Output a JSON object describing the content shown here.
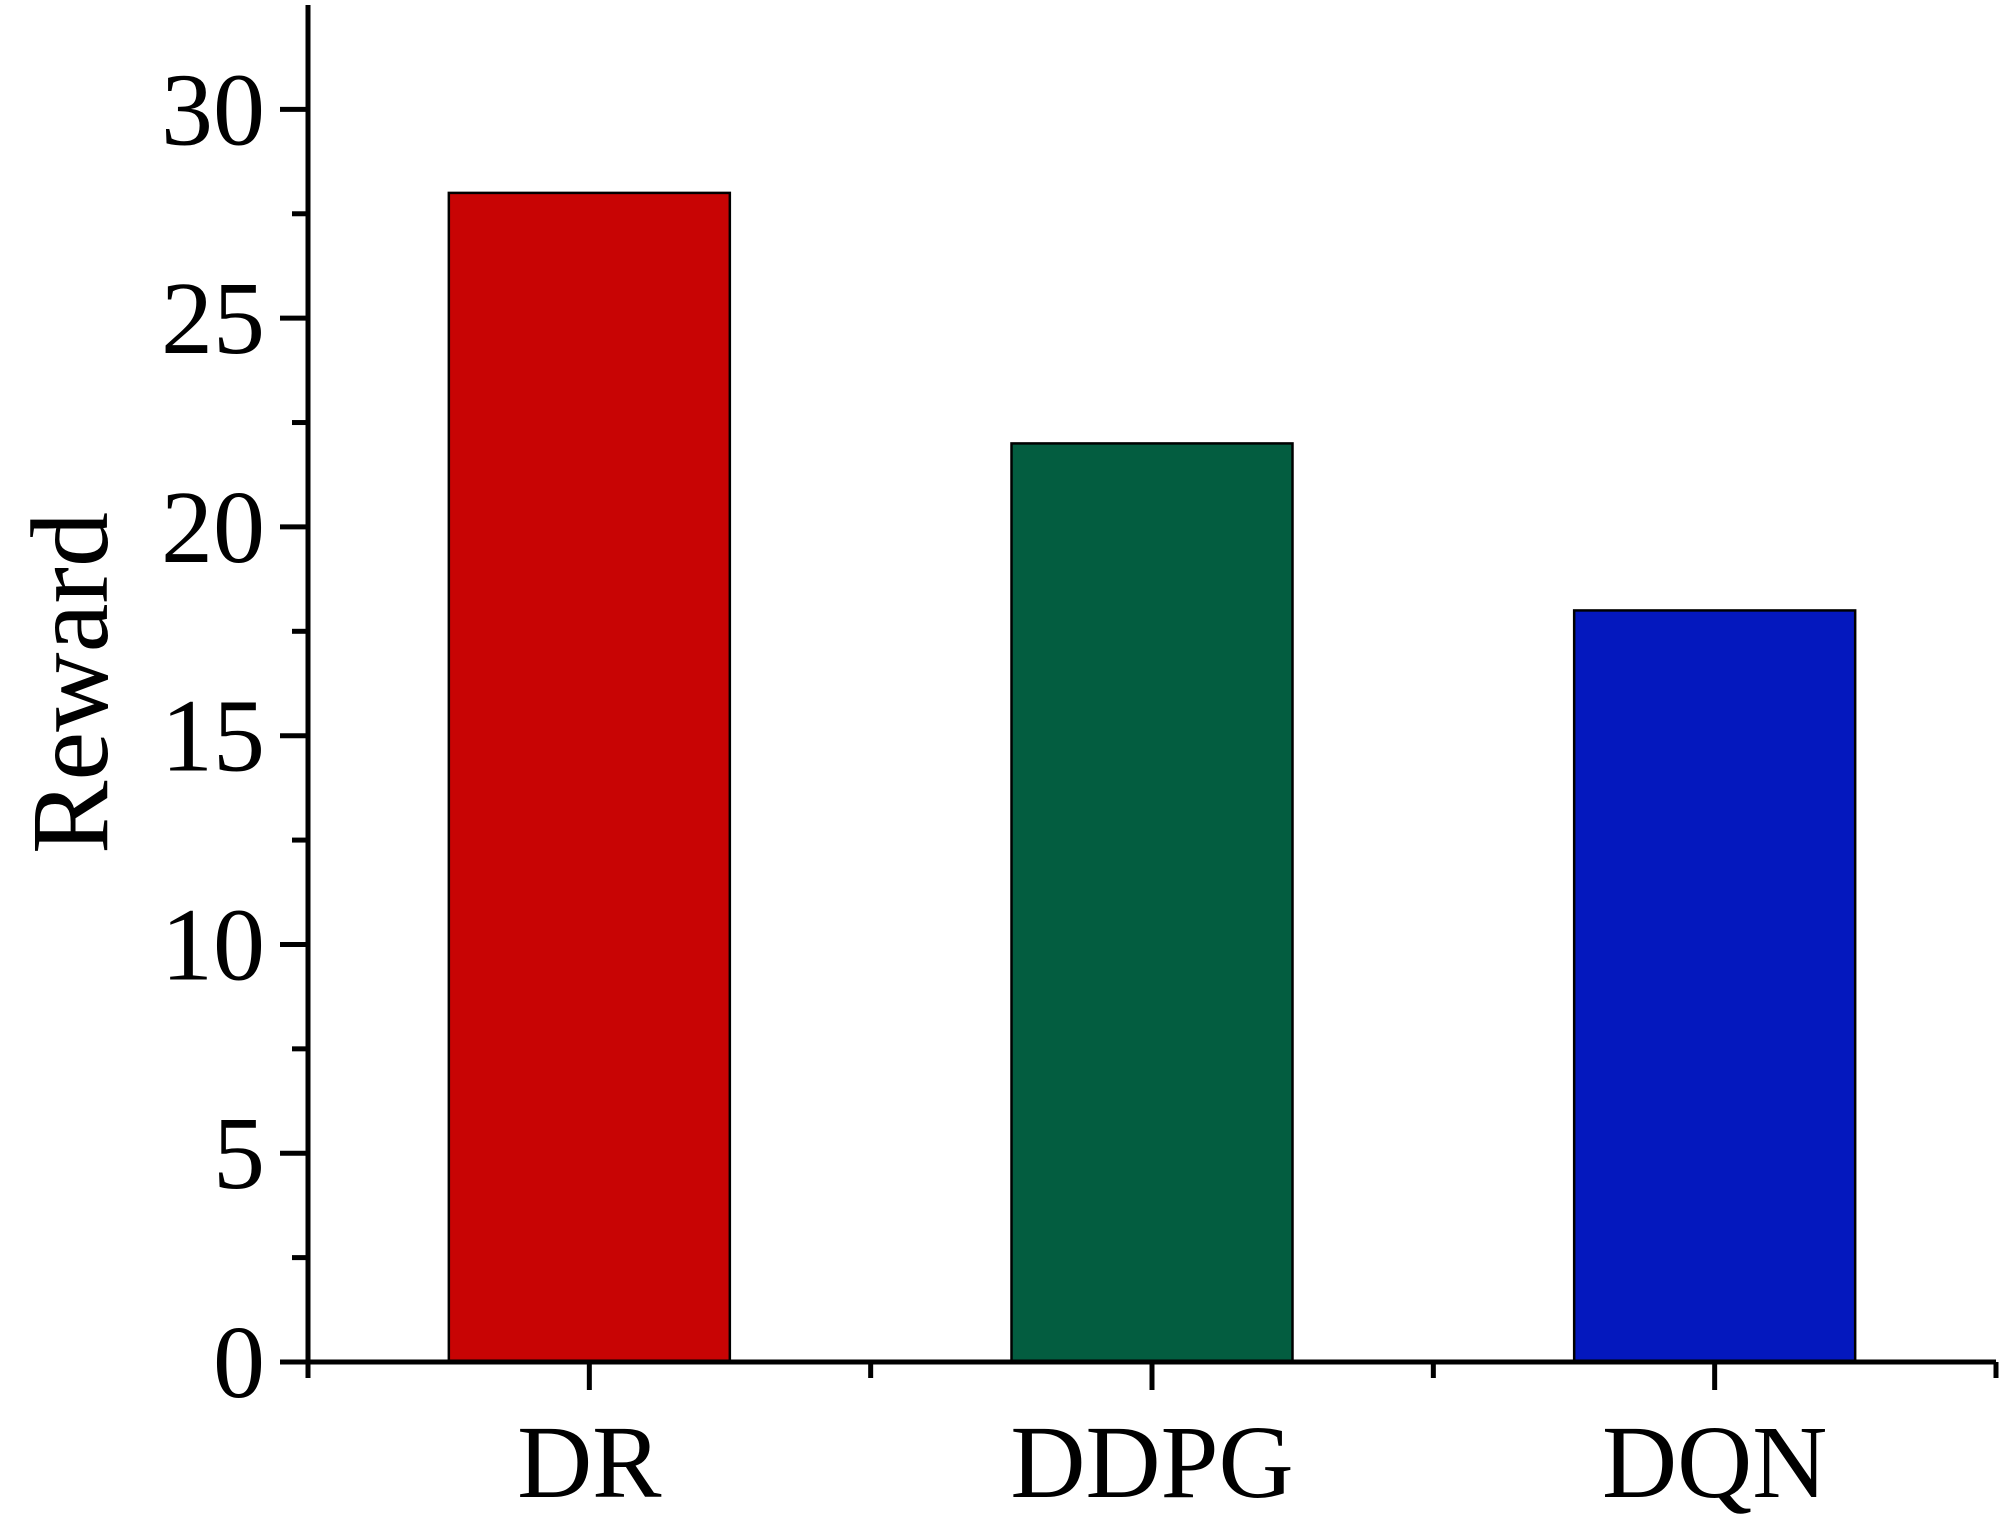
{
  "chart_data": {
    "type": "bar",
    "title": "",
    "xlabel": "",
    "ylabel": "Reward",
    "categories": [
      "DR",
      "DDPG",
      "DQN"
    ],
    "values": [
      28,
      22,
      18
    ],
    "colors": [
      "#c80404",
      "#035d40",
      "#0418be"
    ],
    "ylim": [
      0,
      32.5
    ],
    "yticks": [
      0,
      5,
      10,
      15,
      20,
      25,
      30
    ],
    "yminor_step": 2.5,
    "grid": false,
    "legend": "none"
  }
}
